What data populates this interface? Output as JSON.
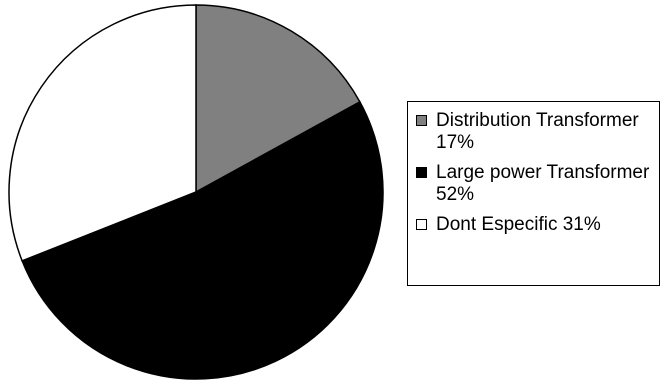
{
  "chart_data": {
    "type": "pie",
    "title": "",
    "slices": [
      {
        "label": "Distribution Transformer",
        "value": 17,
        "color": "#808080",
        "percent_label": "17%"
      },
      {
        "label": "Large power Transformer",
        "value": 52,
        "color": "#000000",
        "percent_label": "52%"
      },
      {
        "label": "Dont Especific",
        "value": 31,
        "color": "#ffffff",
        "percent_label": "31%"
      }
    ],
    "start_angle": "12 o'clock",
    "direction": "clockwise",
    "legend_placement": "right"
  },
  "legend": {
    "items": [
      {
        "text": "Distribution Transformer 17%",
        "color": "#808080"
      },
      {
        "text": "Large power Transformer 52%",
        "color": "#000000"
      },
      {
        "text": "Dont Especific 31%",
        "color": "#ffffff"
      }
    ]
  }
}
